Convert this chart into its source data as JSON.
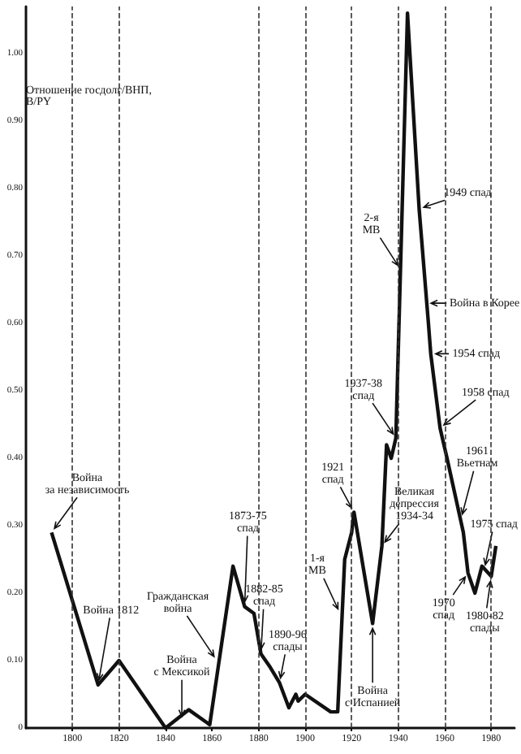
{
  "chart_data": {
    "type": "line",
    "ylabel": "Отношение госдолг/ВНП,\nB/PY",
    "color": "#111111",
    "x": [
      1791,
      1811,
      1820,
      1840,
      1850,
      1859,
      1869,
      1874,
      1878,
      1881,
      1885,
      1889,
      1893,
      1896,
      1897,
      1900,
      1911,
      1914,
      1917,
      1920,
      1921,
      1929,
      1933,
      1935,
      1937,
      1939,
      1944,
      1949,
      1953,
      1954,
      1958,
      1959,
      1961,
      1968,
      1970,
      1973,
      1976,
      1980,
      1982
    ],
    "values": [
      0.29,
      0.064,
      0.1,
      0,
      0.027,
      0.005,
      0.24,
      0.18,
      0.17,
      0.11,
      0.09,
      0.067,
      0.03,
      0.05,
      0.04,
      0.05,
      0.024,
      0.024,
      0.25,
      0.29,
      0.32,
      0.155,
      0.27,
      0.42,
      0.4,
      0.43,
      1.06,
      0.77,
      0.6,
      0.555,
      0.445,
      0.43,
      0.4,
      0.29,
      0.23,
      0.2,
      0.24,
      0.225,
      0.27
    ],
    "xlim": [
      1780,
      1990
    ],
    "xticks": [
      1800,
      1820,
      1840,
      1860,
      1880,
      1900,
      1920,
      1940,
      1960,
      1980
    ],
    "ylim": [
      0,
      1.07
    ],
    "yticks": [
      {
        "value": 0,
        "label": "0"
      },
      {
        "value": 0.1,
        "label": "0.10"
      },
      {
        "value": 0.2,
        "label": "0.20"
      },
      {
        "value": 0.3,
        "label": "0.30"
      },
      {
        "value": 0.4,
        "label": "0.40"
      },
      {
        "value": 0.5,
        "label": "0.50"
      },
      {
        "value": 0.6,
        "label": "0.60"
      },
      {
        "value": 0.7,
        "label": "0.70"
      },
      {
        "value": 0.8,
        "label": "0.80"
      },
      {
        "value": 0.9,
        "label": "0.90"
      },
      {
        "value": 1,
        "label": "1.00"
      }
    ],
    "grid": false,
    "marker": "none",
    "line_style": "solid",
    "ref_lines": [
      {
        "axis": "x",
        "value": 1800,
        "line_style": "dashed"
      },
      {
        "axis": "x",
        "value": 1820,
        "line_style": "dashed"
      },
      {
        "axis": "x",
        "value": 1880,
        "line_style": "dashed"
      },
      {
        "axis": "x",
        "value": 1900,
        "line_style": "dashed"
      },
      {
        "axis": "x",
        "value": 1920,
        "line_style": "dashed"
      },
      {
        "axis": "x",
        "value": 1940,
        "line_style": "dashed"
      },
      {
        "axis": "x",
        "value": 1960,
        "line_style": "dashed"
      },
      {
        "axis": "x",
        "value": 1980,
        "line_style": "dashed"
      }
    ],
    "annotations": [
      {
        "text": "Война\nза независимость",
        "x": 1791,
        "y": 0.29
      },
      {
        "text": "Война 1812",
        "x": 1811,
        "y": 0.064
      },
      {
        "text": "Война\nс Мексикой",
        "x": 1847,
        "y": 0.01
      },
      {
        "text": "Гражданская\nвойна",
        "x": 1862,
        "y": 0.1
      },
      {
        "text": "1873-75\nспад",
        "x": 1874,
        "y": 0.18
      },
      {
        "text": "1882-85\nспад",
        "x": 1881,
        "y": 0.11
      },
      {
        "text": "1890-96\nспады",
        "x": 1889,
        "y": 0.067
      },
      {
        "text": "1-я\nМВ",
        "x": 1915,
        "y": 0.17
      },
      {
        "text": "1921\nспад",
        "x": 1921,
        "y": 0.32
      },
      {
        "text": "Война\nс Испанией",
        "x": 1929,
        "y": 0.155
      },
      {
        "text": "Великая\nдепрессия\n1934-34",
        "x": 1933,
        "y": 0.27
      },
      {
        "text": "1937-38\nспад",
        "x": 1939,
        "y": 0.43
      },
      {
        "text": "2-я\nМВ",
        "x": 1941,
        "y": 0.68
      },
      {
        "text": "1949 спад",
        "x": 1949,
        "y": 0.77
      },
      {
        "text": "Война в Корее",
        "x": 1952,
        "y": 0.63
      },
      {
        "text": "1954 спад",
        "x": 1954,
        "y": 0.555
      },
      {
        "text": "1958 спад",
        "x": 1958,
        "y": 0.445
      },
      {
        "text": "1961\nВьетнам",
        "x": 1967,
        "y": 0.31
      },
      {
        "text": "1970\nспад",
        "x": 1970,
        "y": 0.23
      },
      {
        "text": "1975 спад",
        "x": 1977,
        "y": 0.235
      },
      {
        "text": "1980-82\nспады",
        "x": 1980,
        "y": 0.225
      }
    ]
  }
}
